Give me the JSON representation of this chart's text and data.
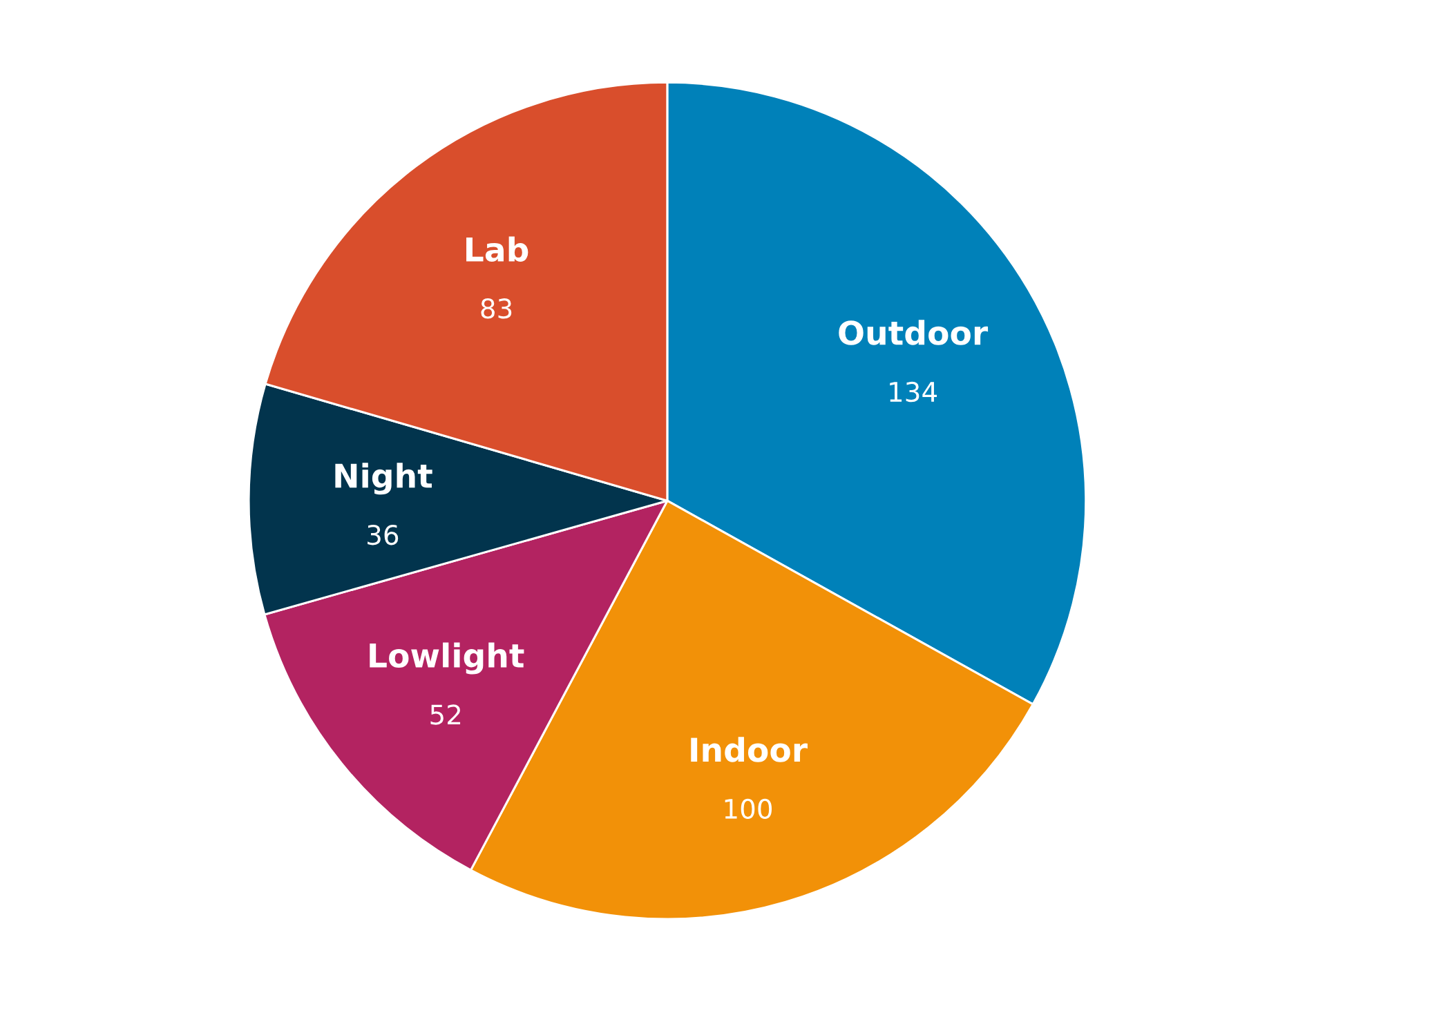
{
  "chart_data": {
    "type": "pie",
    "categories": [
      "Outdoor",
      "Indoor",
      "Lowlight",
      "Night",
      "Lab"
    ],
    "values": [
      134,
      100,
      52,
      36,
      83
    ],
    "colors": [
      "#0081b9",
      "#f29108",
      "#b32361",
      "#02344d",
      "#d94e2c"
    ],
    "data_labels": true,
    "legend": false
  }
}
